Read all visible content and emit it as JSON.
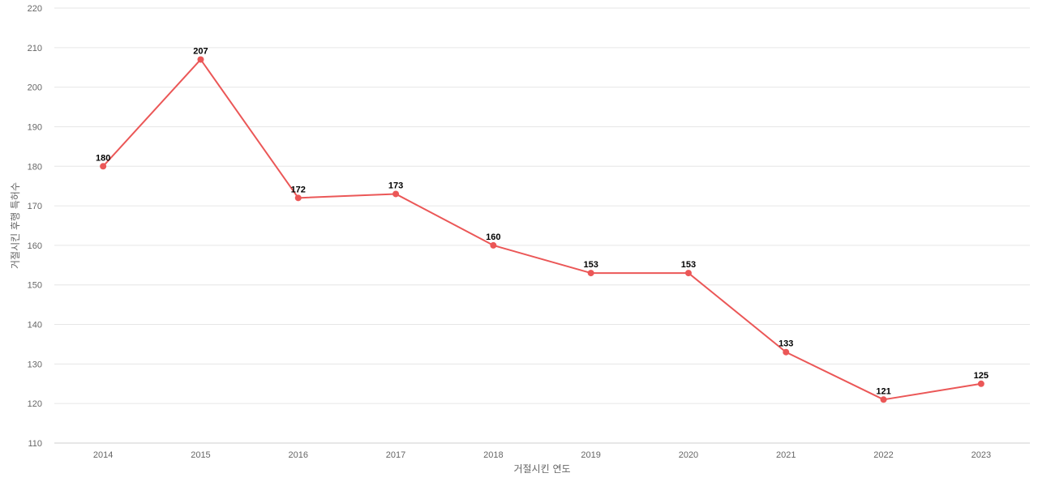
{
  "chart_data": {
    "type": "line",
    "title": "",
    "xlabel": "거절시킨 연도",
    "ylabel": "거절시킨 후행 특허수",
    "categories": [
      "2014",
      "2015",
      "2016",
      "2017",
      "2018",
      "2019",
      "2020",
      "2021",
      "2022",
      "2023"
    ],
    "series": [
      {
        "values": [
          180,
          207,
          172,
          173,
          160,
          153,
          153,
          133,
          121,
          125
        ]
      }
    ],
    "ylim": [
      110,
      220
    ],
    "yticks": [
      110,
      120,
      130,
      140,
      150,
      160,
      170,
      180,
      190,
      200,
      210,
      220
    ],
    "grid": true,
    "data_labels": true,
    "colors": {
      "line": "#eb5757",
      "point": "#eb5757"
    }
  }
}
